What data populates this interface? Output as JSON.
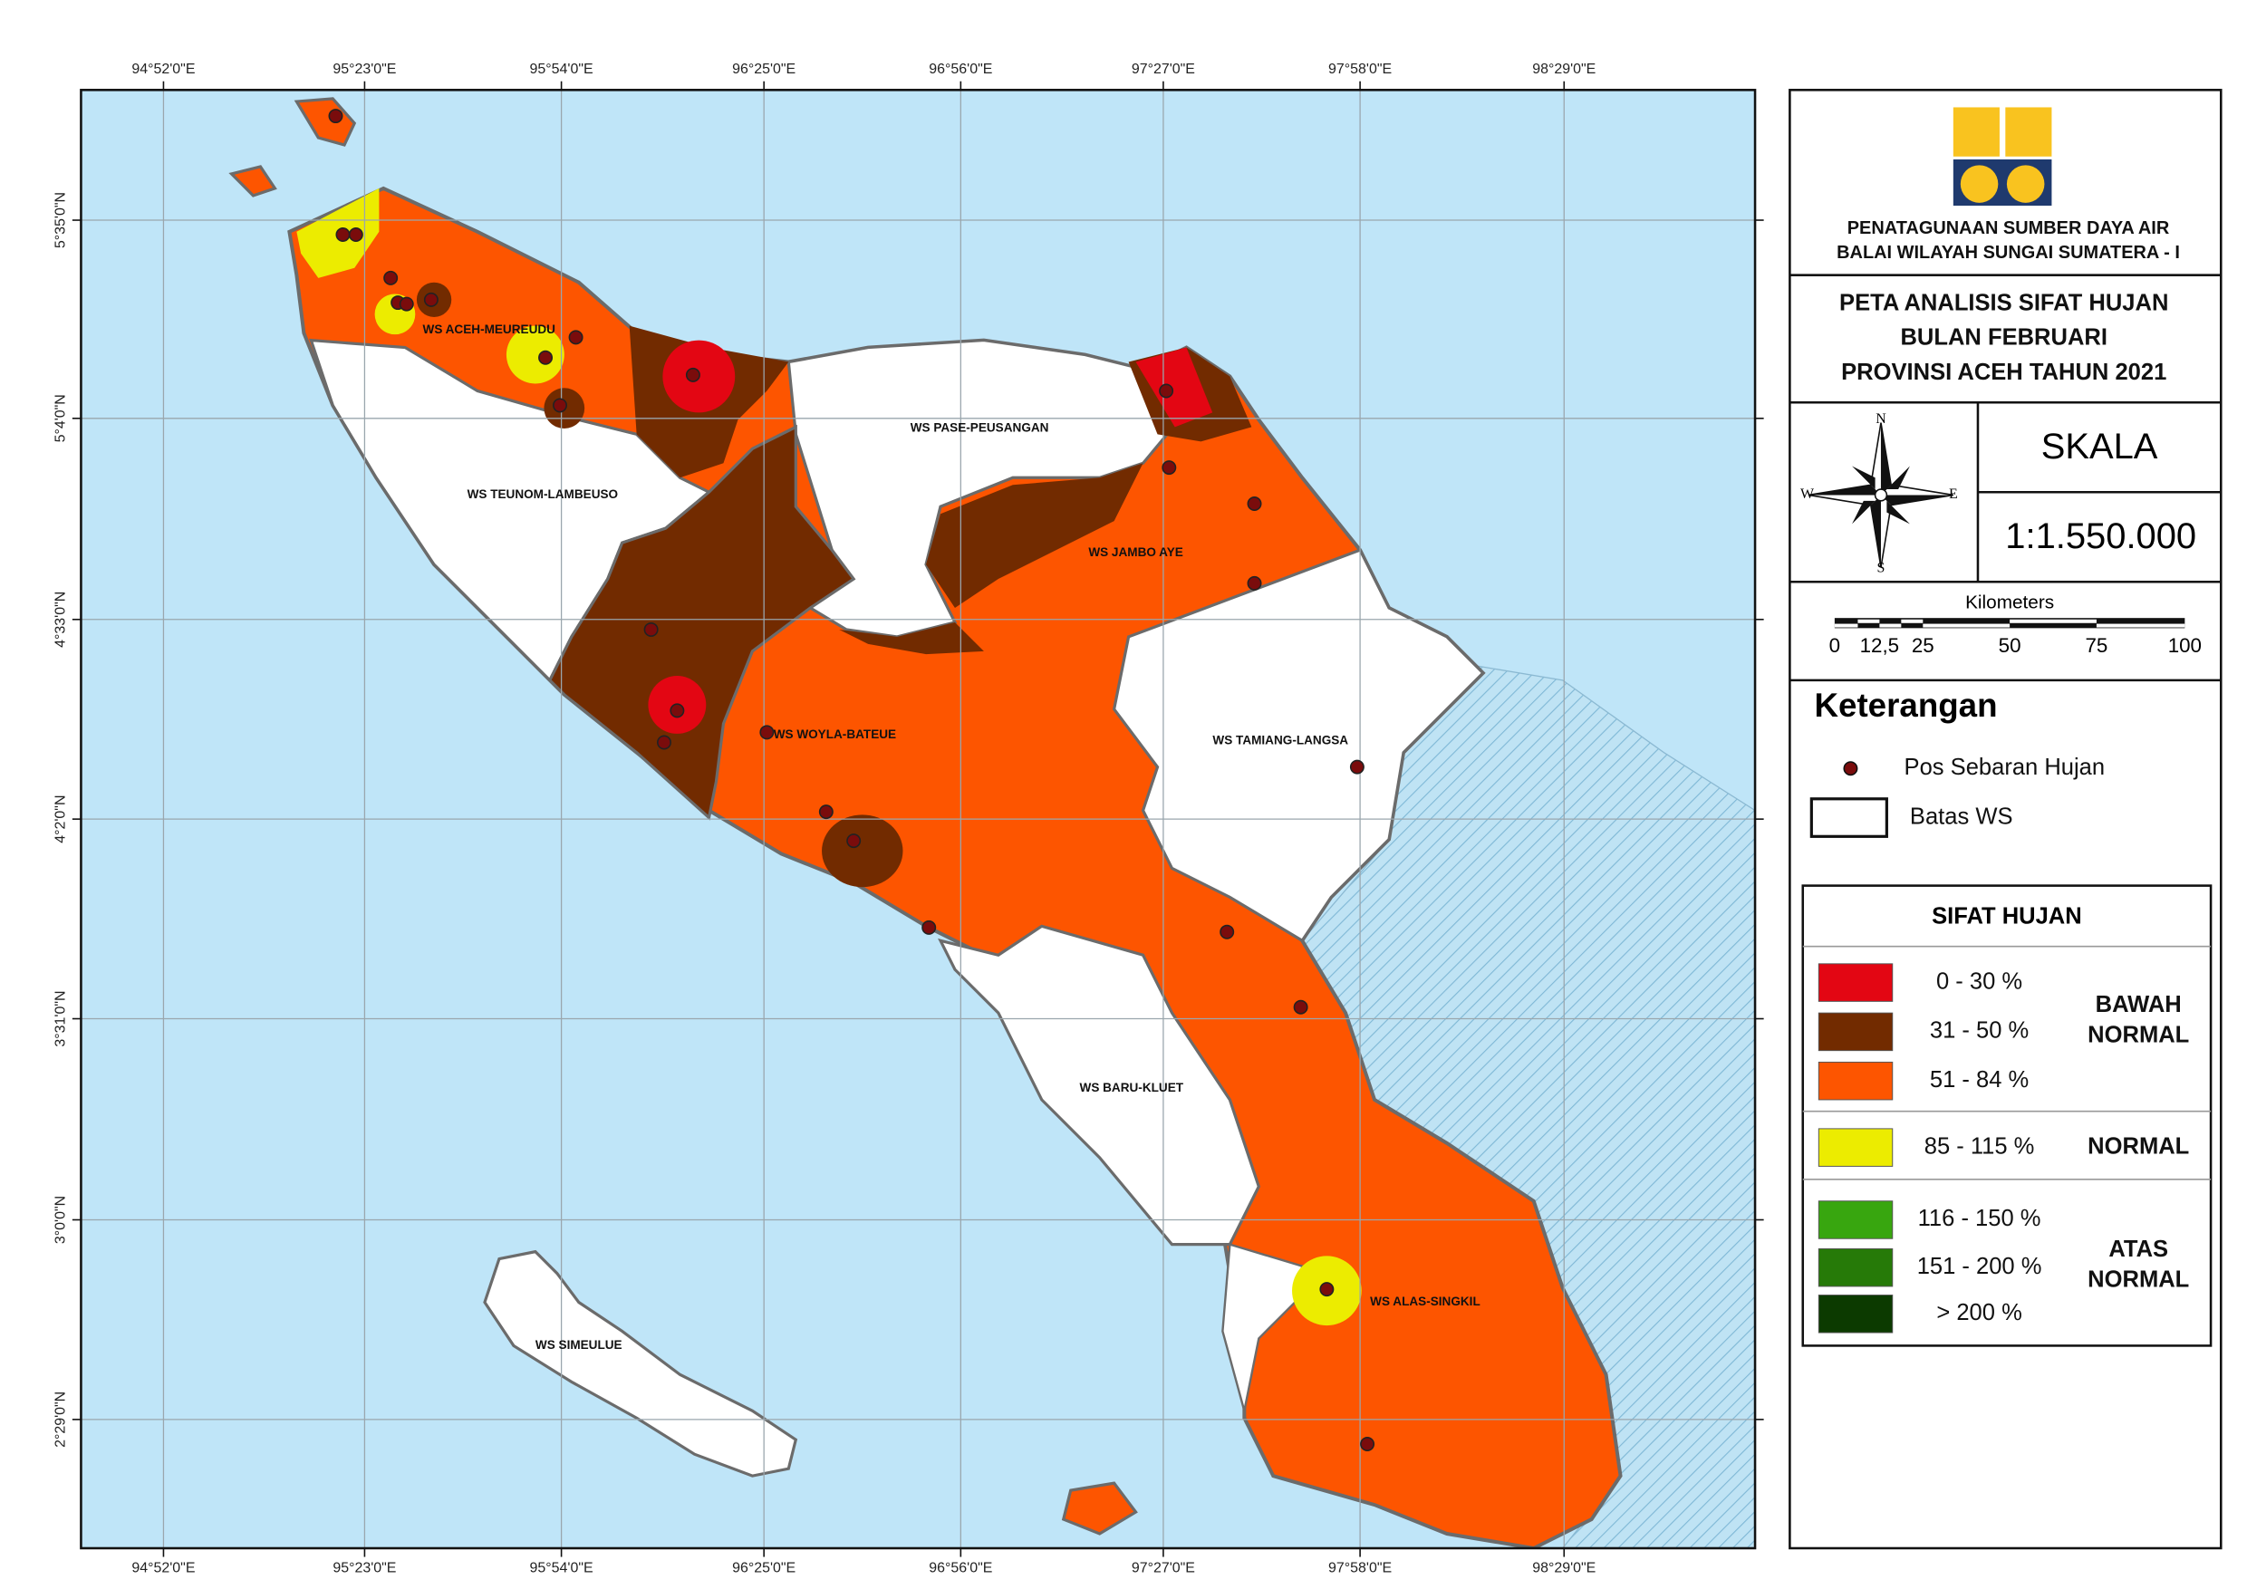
{
  "map": {
    "longitude_labels": [
      "94°52'0\"E",
      "95°23'0\"E",
      "95°54'0\"E",
      "96°25'0\"E",
      "96°56'0\"E",
      "97°27'0\"E",
      "97°58'0\"E",
      "98°29'0\"E"
    ],
    "latitude_labels": [
      "5°35'0\"N",
      "5°4'0\"N",
      "4°33'0\"N",
      "4°2'0\"N",
      "3°31'0\"N",
      "3°0'0\"N",
      "2°29'0\"N"
    ],
    "regions": [
      "WS ACEH-MEUREUDU",
      "WS PASE-PEUSANGAN",
      "WS TEUNOM-LAMBEUSO",
      "WS JAMBO AYE",
      "WS WOYLA-BATEUE",
      "WS TAMIANG-LANGSA",
      "WS BARU-KLUET",
      "WS ALAS-SINGKIL",
      "WS SIMEULUE"
    ]
  },
  "header": {
    "org_lines": [
      "PENATAGUNAAN SUMBER DAYA AIR",
      "BALAI WILAYAH SUNGAI SUMATERA - I"
    ],
    "title_lines": [
      "PETA ANALISIS SIFAT HUJAN",
      "BULAN FEBRUARI",
      "PROVINSI ACEH TAHUN 2021"
    ]
  },
  "compass": {
    "n": "N",
    "s": "S",
    "e": "E",
    "w": "W"
  },
  "scale": {
    "label": "SKALA",
    "ratio": "1:1.550.000",
    "unit": "Kilometers",
    "ticks": [
      "0",
      "12,5",
      "25",
      "50",
      "75",
      "100"
    ]
  },
  "legend": {
    "title": "Keterangan",
    "station": "Pos Sebaran Hujan",
    "boundary": "Batas WS",
    "class_title": "SIFAT HUJAN",
    "classes": [
      {
        "label": "0 - 30 %",
        "color": "#e30613"
      },
      {
        "label": "31 - 50 %",
        "color": "#722b00"
      },
      {
        "label": "51 - 84 %",
        "color": "#fd5500"
      },
      {
        "label": "85 - 115 %",
        "color": "#ecec00"
      },
      {
        "label": "116 - 150 %",
        "color": "#38a60f"
      },
      {
        "label": "151 - 200 %",
        "color": "#267a08"
      },
      {
        "label": "> 200 %",
        "color": "#0c3a00"
      }
    ],
    "groups": [
      [
        "BAWAH",
        "NORMAL"
      ],
      [
        "NORMAL"
      ],
      [
        "ATAS",
        "NORMAL"
      ]
    ]
  }
}
